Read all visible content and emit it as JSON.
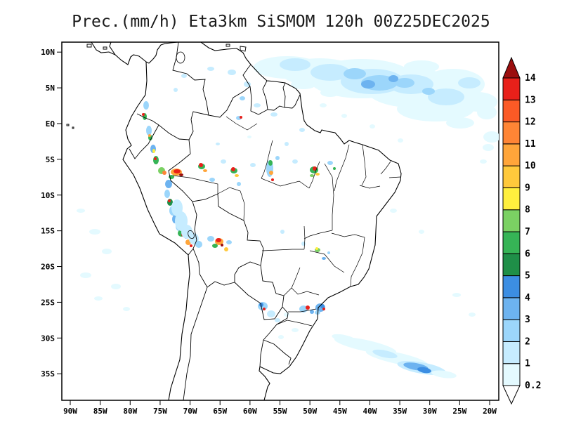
{
  "title": "Prec.(mm/h) Eta3km SiSMOM 120h 00Z25DEC2025",
  "colors": {
    "background": "#FFFFFF",
    "frame": "#000000",
    "map_lines": "#000000",
    "title_text": "#1A1A1A"
  },
  "chart_data": {
    "type": "heatmap",
    "title": "Prec.(mm/h) Eta3km SiSMOM 120h 00Z25DEC2025",
    "variable": "Prec.(mm/h)",
    "model": "Eta3km SiSMOM",
    "forecast_hour": "120h",
    "init_time": "00Z25DEC2025",
    "region": "South America",
    "grid": false,
    "x_axis": {
      "ticks": [
        "90W",
        "85W",
        "80W",
        "75W",
        "70W",
        "65W",
        "60W",
        "55W",
        "50W",
        "45W",
        "40W",
        "35W",
        "30W",
        "25W",
        "20W"
      ]
    },
    "y_axis": {
      "ticks": [
        "10N",
        "5N",
        "EQ",
        "5S",
        "10S",
        "15S",
        "20S",
        "25S",
        "30S",
        "35S"
      ]
    },
    "colorbar": {
      "units": "mm/h",
      "position": "right",
      "levels": [
        "0.2",
        "1",
        "2",
        "3",
        "4",
        "5",
        "6",
        "7",
        "8",
        "9",
        "10",
        "11",
        "12",
        "13",
        "14"
      ],
      "colors": [
        "#E4FAFF",
        "#C6ECFF",
        "#9CD6FB",
        "#6DB3F0",
        "#3C8EE3",
        "#1F8F48",
        "#36B456",
        "#7BD163",
        "#FFEF3E",
        "#FFC93C",
        "#FFA53A",
        "#FF8535",
        "#FB5A26",
        "#E8201A"
      ],
      "over_color": "#9B0E0E",
      "under_color": "#FFFFFF"
    },
    "precip_areas": [
      {
        "region": "Northern South America and tropical Atlantic (Guianas, 60W-25W, EQ-10N)",
        "intensity_mm_h": "0.2-4 widespread light shading"
      },
      {
        "region": "Andes of Colombia-Ecuador-Peru (78W-70W, 5N-18S)",
        "intensity_mm_h": "chain of convective cells, cores above 14"
      },
      {
        "region": "Amazon basin scattered cells (70W-46W, EQ-10S)",
        "intensity_mm_h": "1-14 isolated cores"
      },
      {
        "region": "Bolivian Andes (~65W, 16S)",
        "intensity_mm_h": "cluster with cores above 14"
      },
      {
        "region": "Paraguay and Southeast Brazil coast (58W-48W, 22S-27S)",
        "intensity_mm_h": "1-5 with embedded 13-14 cores"
      },
      {
        "region": "South Atlantic band (50W-28W, 28S-35S)",
        "intensity_mm_h": "0.2-5 elongated streak"
      },
      {
        "region": "SE Pacific off Peru/Chile",
        "intensity_mm_h": "0.2-1 faint patches"
      }
    ],
    "render_cells": [
      [
        409,
        96,
        48,
        16,
        0
      ],
      [
        455,
        103,
        55,
        20,
        0
      ],
      [
        515,
        112,
        75,
        28,
        0
      ],
      [
        585,
        125,
        65,
        28,
        0
      ],
      [
        645,
        120,
        45,
        22,
        0
      ],
      [
        620,
        155,
        55,
        18,
        0
      ],
      [
        680,
        145,
        28,
        14,
        0
      ],
      [
        530,
        116,
        45,
        18,
        1
      ],
      [
        470,
        103,
        28,
        12,
        1
      ],
      [
        420,
        92,
        22,
        9,
        1
      ],
      [
        585,
        120,
        32,
        14,
        1
      ],
      [
        635,
        138,
        26,
        12,
        1
      ],
      [
        540,
        118,
        26,
        11,
        2
      ],
      [
        505,
        105,
        16,
        8,
        2
      ],
      [
        576,
        118,
        14,
        7,
        2
      ],
      [
        524,
        120,
        10,
        6,
        3
      ],
      [
        560,
        112,
        7,
        5,
        3
      ],
      [
        610,
        130,
        9,
        5,
        2
      ],
      [
        668,
        118,
        16,
        8,
        1
      ],
      [
        693,
        160,
        14,
        10,
        0
      ],
      [
        600,
        95,
        25,
        9,
        0
      ],
      [
        655,
        175,
        20,
        8,
        0
      ],
      [
        700,
        195,
        12,
        8,
        0
      ],
      [
        432,
        120,
        18,
        7,
        0
      ],
      [
        470,
        132,
        14,
        6,
        0
      ],
      [
        352,
        120,
        5,
        4,
        1
      ],
      [
        345,
        140,
        4,
        3,
        2
      ],
      [
        366,
        150,
        5,
        3,
        1
      ],
      [
        330,
        103,
        6,
        4,
        1
      ],
      [
        340,
        168,
        4,
        3,
        2
      ],
      [
        343,
        167,
        2,
        2,
        13
      ],
      [
        390,
        163,
        5,
        3,
        1
      ],
      [
        300,
        98,
        5,
        3,
        1
      ],
      [
        208,
        150,
        4,
        6,
        2
      ],
      [
        206,
        166,
        3,
        5,
        6
      ],
      [
        204,
        163,
        2,
        2,
        13
      ],
      [
        212,
        186,
        4,
        7,
        2
      ],
      [
        214,
        196,
        3,
        4,
        6
      ],
      [
        213,
        193,
        2,
        2,
        10
      ],
      [
        218,
        212,
        4,
        6,
        3
      ],
      [
        219,
        215,
        2,
        3,
        8
      ],
      [
        222,
        228,
        4,
        6,
        6
      ],
      [
        221,
        226,
        2,
        2,
        13
      ],
      [
        230,
        243,
        5,
        5,
        7
      ],
      [
        234,
        246,
        3,
        3,
        11
      ],
      [
        251,
        245,
        8,
        5,
        10
      ],
      [
        252,
        244,
        5,
        3,
        13
      ],
      [
        258,
        249,
        3,
        2,
        14
      ],
      [
        244,
        252,
        4,
        3,
        6
      ],
      [
        240,
        262,
        5,
        6,
        3
      ],
      [
        238,
        276,
        4,
        6,
        2
      ],
      [
        242,
        288,
        4,
        5,
        5
      ],
      [
        241,
        286,
        2,
        2,
        13
      ],
      [
        246,
        300,
        5,
        7,
        2
      ],
      [
        249,
        312,
        4,
        6,
        3
      ],
      [
        252,
        308,
        2,
        3,
        6
      ],
      [
        255,
        322,
        5,
        7,
        2
      ],
      [
        258,
        332,
        5,
        5,
        6
      ],
      [
        261,
        334,
        3,
        3,
        13
      ],
      [
        265,
        338,
        2,
        2,
        14
      ],
      [
        268,
        345,
        4,
        4,
        10
      ],
      [
        272,
        350,
        2,
        2,
        13
      ],
      [
        252,
        296,
        8,
        12,
        1
      ],
      [
        258,
        315,
        9,
        14,
        1
      ],
      [
        266,
        330,
        8,
        10,
        1
      ],
      [
        276,
        340,
        7,
        8,
        1
      ],
      [
        283,
        348,
        5,
        5,
        2
      ],
      [
        287,
        237,
        5,
        4,
        6
      ],
      [
        286,
        235,
        3,
        3,
        13
      ],
      [
        292,
        243,
        3,
        2,
        10
      ],
      [
        302,
        256,
        4,
        3,
        2
      ],
      [
        318,
        230,
        4,
        3,
        1
      ],
      [
        333,
        243,
        5,
        4,
        6
      ],
      [
        332,
        241,
        3,
        3,
        13
      ],
      [
        337,
        250,
        3,
        2,
        9
      ],
      [
        340,
        262,
        3,
        3,
        2
      ],
      [
        360,
        235,
        4,
        3,
        1
      ],
      [
        384,
        240,
        5,
        12,
        2
      ],
      [
        385,
        232,
        3,
        4,
        6
      ],
      [
        386,
        246,
        3,
        3,
        10
      ],
      [
        388,
        256,
        2,
        2,
        13
      ],
      [
        395,
        225,
        3,
        3,
        2
      ],
      [
        420,
        230,
        4,
        3,
        1
      ],
      [
        447,
        242,
        6,
        5,
        6
      ],
      [
        448,
        240,
        3,
        3,
        13
      ],
      [
        452,
        248,
        3,
        2,
        9
      ],
      [
        444,
        250,
        3,
        2,
        7
      ],
      [
        470,
        232,
        4,
        3,
        2
      ],
      [
        476,
        240,
        2,
        2,
        6
      ],
      [
        430,
        185,
        4,
        3,
        1
      ],
      [
        408,
        205,
        3,
        3,
        1
      ],
      [
        355,
        195,
        3,
        2,
        0
      ],
      [
        310,
        205,
        3,
        2,
        1
      ],
      [
        312,
        344,
        6,
        5,
        10
      ],
      [
        311,
        342,
        4,
        3,
        13
      ],
      [
        316,
        349,
        2,
        2,
        14
      ],
      [
        306,
        350,
        4,
        3,
        6
      ],
      [
        322,
        355,
        3,
        3,
        9
      ],
      [
        300,
        340,
        5,
        4,
        2
      ],
      [
        326,
        345,
        4,
        3,
        2
      ],
      [
        402,
        330,
        3,
        3,
        1
      ],
      [
        432,
        347,
        3,
        3,
        1
      ],
      [
        452,
        356,
        4,
        3,
        7
      ],
      [
        451,
        354,
        2,
        2,
        8
      ],
      [
        461,
        368,
        3,
        2,
        3
      ],
      [
        468,
        360,
        2,
        2,
        2
      ],
      [
        374,
        436,
        7,
        6,
        2
      ],
      [
        372,
        434,
        3,
        3,
        4
      ],
      [
        376,
        440,
        2,
        2,
        13
      ],
      [
        386,
        447,
        6,
        5,
        1
      ],
      [
        395,
        456,
        4,
        3,
        1
      ],
      [
        408,
        448,
        4,
        3,
        0
      ],
      [
        432,
        440,
        6,
        5,
        2
      ],
      [
        438,
        438,
        3,
        3,
        13
      ],
      [
        444,
        444,
        3,
        3,
        3
      ],
      [
        456,
        438,
        7,
        6,
        3
      ],
      [
        459,
        436,
        3,
        3,
        4
      ],
      [
        461,
        440,
        2,
        2,
        13
      ],
      [
        452,
        445,
        4,
        3,
        2
      ],
      [
        420,
        470,
        5,
        3,
        0
      ],
      [
        400,
        480,
        4,
        3,
        0
      ],
      [
        520,
        492,
        45,
        8,
        0,
        12
      ],
      [
        565,
        510,
        45,
        8,
        0,
        12
      ],
      [
        600,
        524,
        35,
        8,
        1,
        10
      ],
      [
        592,
        522,
        18,
        5,
        3,
        10
      ],
      [
        604,
        527,
        10,
        4,
        4,
        10
      ],
      [
        548,
        504,
        18,
        5,
        1,
        12
      ],
      [
        490,
        482,
        18,
        5,
        0,
        12
      ],
      [
        632,
        533,
        18,
        5,
        0,
        8
      ],
      [
        135,
        330,
        8,
        4,
        0
      ],
      [
        152,
        358,
        7,
        4,
        0
      ],
      [
        122,
        392,
        8,
        4,
        0
      ],
      [
        165,
        408,
        7,
        4,
        0
      ],
      [
        140,
        425,
        6,
        3,
        0
      ],
      [
        115,
        300,
        6,
        3,
        0
      ],
      [
        180,
        440,
        5,
        3,
        0
      ],
      [
        560,
        300,
        5,
        3,
        0
      ],
      [
        600,
        330,
        4,
        3,
        0
      ],
      [
        650,
        420,
        6,
        3,
        0
      ],
      [
        672,
        448,
        5,
        3,
        0
      ],
      [
        695,
        210,
        8,
        5,
        0
      ],
      [
        688,
        230,
        5,
        3,
        0
      ],
      [
        460,
        150,
        5,
        3,
        0
      ],
      [
        490,
        165,
        4,
        3,
        0
      ],
      [
        530,
        180,
        4,
        3,
        0
      ],
      [
        570,
        200,
        4,
        3,
        0
      ],
      [
        262,
        108,
        4,
        3,
        1
      ],
      [
        250,
        128,
        3,
        3,
        1
      ]
    ]
  }
}
